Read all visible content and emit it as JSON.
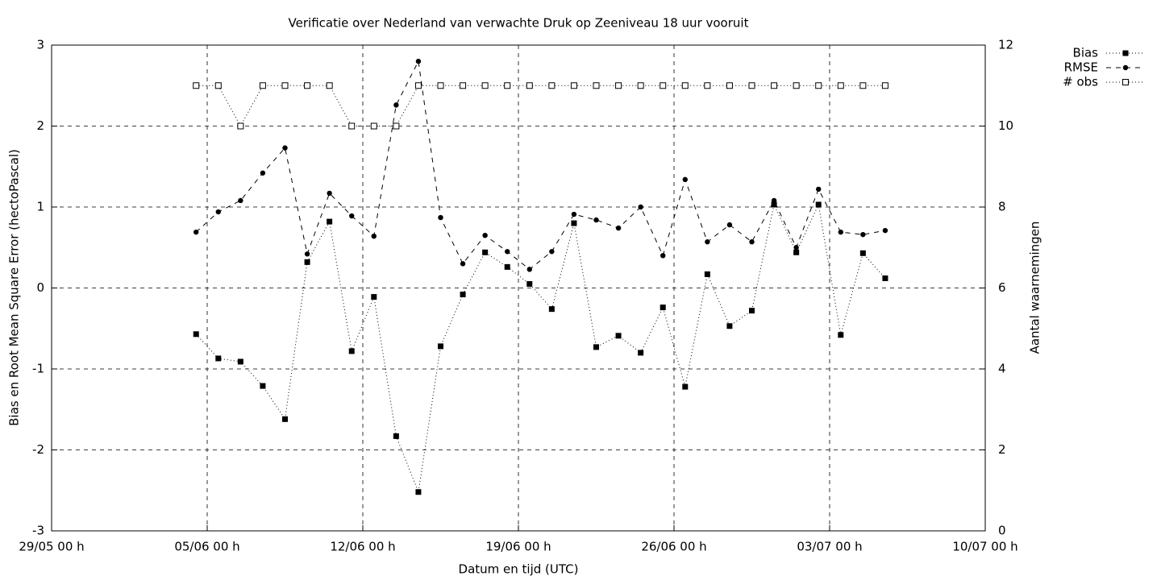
{
  "chart_data": {
    "type": "line",
    "title": "Verificatie over Nederland van verwachte Druk op Zeeniveau 18 uur vooruit",
    "xlabel": "Datum en tijd (UTC)",
    "ylabel": "Bias en Root Mean Square Error (hectoPascal)",
    "y2label": "Aantal waarnemingen",
    "x": [
      "04/06 12 h",
      "05/06 12 h",
      "06/06 12 h",
      "07/06 12 h",
      "08/06 12 h",
      "09/06 12 h",
      "10/06 12 h",
      "11/06 12 h",
      "12/06 12 h",
      "13/06 12 h",
      "14/06 12 h",
      "15/06 12 h",
      "16/06 12 h",
      "17/06 12 h",
      "18/06 12 h",
      "19/06 12 h",
      "20/06 12 h",
      "21/06 12 h",
      "22/06 12 h",
      "23/06 12 h",
      "24/06 12 h",
      "25/06 12 h",
      "26/06 12 h",
      "27/06 12 h",
      "28/06 12 h",
      "29/06 12 h",
      "30/06 12 h",
      "01/07 12 h",
      "02/07 12 h",
      "03/07 12 h",
      "04/07 12 h",
      "05/07 12 h"
    ],
    "xlim": [
      "29/05 00 h",
      "10/07 00 h"
    ],
    "xticks": [
      "29/05 00 h",
      "05/06 00 h",
      "12/06 00 h",
      "19/06 00 h",
      "26/06 00 h",
      "03/07 00 h",
      "10/07 00 h"
    ],
    "ylim": [
      -3,
      3
    ],
    "yticks": [
      -3,
      -2,
      -1,
      0,
      1,
      2,
      3
    ],
    "y2lim": [
      0,
      12
    ],
    "y2ticks": [
      0,
      2,
      4,
      6,
      8,
      10,
      12
    ],
    "grid": true,
    "legend": "top-right",
    "series": [
      {
        "name": "Bias",
        "color": "#000000",
        "line_style": "dotted",
        "marker": "filled-square",
        "values": [
          -0.57,
          -0.87,
          -0.91,
          -1.21,
          -1.62,
          0.32,
          0.82,
          -0.78,
          -0.11,
          -1.83,
          -2.52,
          -0.72,
          -0.08,
          0.44,
          0.26,
          0.05,
          -0.26,
          0.8,
          -0.73,
          -0.59,
          -0.8,
          -0.24,
          -1.22,
          0.17,
          -0.47,
          -0.28,
          1.03,
          0.44,
          1.03,
          -0.58,
          0.43,
          0.12
        ]
      },
      {
        "name": "RMSE",
        "color": "#000000",
        "line_style": "dashed",
        "marker": "circle",
        "values": [
          0.69,
          0.94,
          1.08,
          1.42,
          1.73,
          0.42,
          1.17,
          0.89,
          0.64,
          2.26,
          2.8,
          0.87,
          0.3,
          0.65,
          0.45,
          0.23,
          0.45,
          0.91,
          0.84,
          0.74,
          1.0,
          0.4,
          1.34,
          0.57,
          0.78,
          0.57,
          1.08,
          0.5,
          1.22,
          0.69,
          0.66,
          0.71
        ]
      },
      {
        "name": "# obs",
        "color": "#000000",
        "line_style": "dotted",
        "marker": "open-square",
        "axis": "y2",
        "values": [
          11,
          11,
          10,
          11,
          11,
          11,
          11,
          10,
          10,
          10,
          11,
          11,
          11,
          11,
          11,
          11,
          11,
          11,
          11,
          11,
          11,
          11,
          11,
          11,
          11,
          11,
          11,
          11,
          11,
          11,
          11,
          11
        ]
      }
    ]
  }
}
